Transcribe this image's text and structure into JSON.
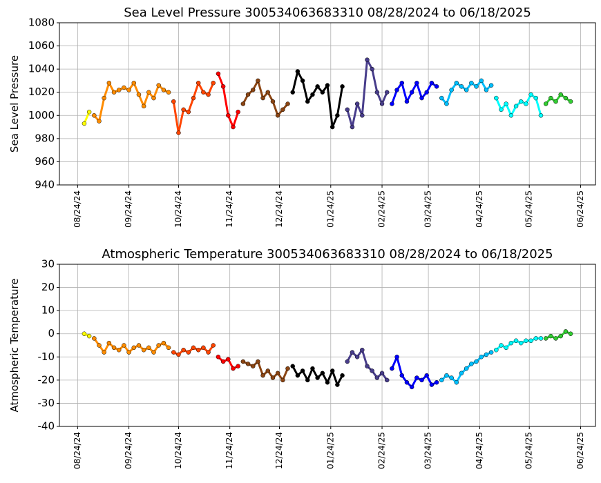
{
  "chart_data": [
    {
      "type": "scatter",
      "title": "Sea Level Pressure 300534063683310  08/28/2024 to 06/18/2025",
      "y_label": "Sea Level Pressure",
      "xlim": [
        "2024-08-13",
        "2025-07-03"
      ],
      "ylim": [
        940,
        1080
      ],
      "yticks": [
        940,
        960,
        980,
        1000,
        1020,
        1040,
        1060,
        1080
      ],
      "grid": true,
      "xticks": [
        {
          "value": "2024-08-24",
          "label": "08/24/24"
        },
        {
          "value": "2024-09-24",
          "label": "09/24/24"
        },
        {
          "value": "2024-10-24",
          "label": "10/24/24"
        },
        {
          "value": "2024-11-24",
          "label": "11/24/24"
        },
        {
          "value": "2024-12-24",
          "label": "12/24/24"
        },
        {
          "value": "2025-01-24",
          "label": "01/24/25"
        },
        {
          "value": "2025-02-24",
          "label": "02/24/25"
        },
        {
          "value": "2025-03-24",
          "label": "03/24/25"
        },
        {
          "value": "2025-04-24",
          "label": "04/24/25"
        },
        {
          "value": "2025-05-24",
          "label": "05/24/25"
        },
        {
          "value": "2025-06-24",
          "label": "06/24/25"
        }
      ],
      "series": [
        {
          "color": "#ffff00",
          "x": [
            "2024-08-28",
            "2024-08-31"
          ],
          "values": [
            993,
            1003
          ]
        },
        {
          "color": "#ff8c00",
          "x": [
            "2024-09-03",
            "2024-09-06",
            "2024-09-09",
            "2024-09-12",
            "2024-09-15",
            "2024-09-18",
            "2024-09-21",
            "2024-09-24",
            "2024-09-27",
            "2024-09-30",
            "2024-10-03",
            "2024-10-06",
            "2024-10-09",
            "2024-10-12",
            "2024-10-15",
            "2024-10-18"
          ],
          "values": [
            1000,
            995,
            1015,
            1028,
            1020,
            1022,
            1024,
            1022,
            1028,
            1018,
            1008,
            1020,
            1015,
            1026,
            1022,
            1020
          ]
        },
        {
          "color": "#ff4500",
          "x": [
            "2024-10-21",
            "2024-10-24",
            "2024-10-27",
            "2024-10-30",
            "2024-11-02",
            "2024-11-05",
            "2024-11-08",
            "2024-11-11",
            "2024-11-14"
          ],
          "values": [
            1012,
            985,
            1005,
            1003,
            1015,
            1028,
            1020,
            1018,
            1028
          ]
        },
        {
          "color": "#ff0000",
          "x": [
            "2024-11-17",
            "2024-11-20",
            "2024-11-23",
            "2024-11-26",
            "2024-11-29"
          ],
          "values": [
            1036,
            1025,
            1000,
            990,
            1003
          ]
        },
        {
          "color": "#8b4513",
          "x": [
            "2024-12-02",
            "2024-12-05",
            "2024-12-08",
            "2024-12-11",
            "2024-12-14",
            "2024-12-17",
            "2024-12-20",
            "2024-12-23",
            "2024-12-26",
            "2024-12-29"
          ],
          "values": [
            1010,
            1018,
            1022,
            1030,
            1015,
            1020,
            1012,
            1000,
            1005,
            1010
          ]
        },
        {
          "color": "#000000",
          "x": [
            "2025-01-01",
            "2025-01-04",
            "2025-01-07",
            "2025-01-10",
            "2025-01-13",
            "2025-01-16",
            "2025-01-19",
            "2025-01-22",
            "2025-01-25",
            "2025-01-28",
            "2025-01-31"
          ],
          "values": [
            1020,
            1038,
            1030,
            1012,
            1018,
            1025,
            1020,
            1026,
            990,
            1000,
            1025
          ]
        },
        {
          "color": "#483d8b",
          "x": [
            "2025-02-03",
            "2025-02-06",
            "2025-02-09",
            "2025-02-12",
            "2025-02-15",
            "2025-02-18",
            "2025-02-21",
            "2025-02-24",
            "2025-02-27"
          ],
          "values": [
            1005,
            990,
            1010,
            1000,
            1048,
            1040,
            1020,
            1010,
            1020
          ]
        },
        {
          "color": "#0000ff",
          "x": [
            "2025-03-02",
            "2025-03-05",
            "2025-03-08",
            "2025-03-11",
            "2025-03-14",
            "2025-03-17",
            "2025-03-20",
            "2025-03-23",
            "2025-03-26",
            "2025-03-29"
          ],
          "values": [
            1010,
            1022,
            1028,
            1012,
            1020,
            1028,
            1015,
            1020,
            1028,
            1025
          ]
        },
        {
          "color": "#00bfff",
          "x": [
            "2025-04-01",
            "2025-04-04",
            "2025-04-07",
            "2025-04-10",
            "2025-04-13",
            "2025-04-16",
            "2025-04-19",
            "2025-04-22",
            "2025-04-25",
            "2025-04-28",
            "2025-05-01"
          ],
          "values": [
            1015,
            1010,
            1022,
            1028,
            1025,
            1022,
            1028,
            1025,
            1030,
            1022,
            1026
          ]
        },
        {
          "color": "#00ffff",
          "x": [
            "2025-05-04",
            "2025-05-07",
            "2025-05-10",
            "2025-05-13",
            "2025-05-16",
            "2025-05-19",
            "2025-05-22",
            "2025-05-25",
            "2025-05-28",
            "2025-05-31"
          ],
          "values": [
            1015,
            1005,
            1010,
            1000,
            1008,
            1012,
            1010,
            1018,
            1015,
            1000
          ]
        },
        {
          "color": "#32cd32",
          "x": [
            "2025-06-03",
            "2025-06-06",
            "2025-06-09",
            "2025-06-12",
            "2025-06-15",
            "2025-06-18"
          ],
          "values": [
            1010,
            1015,
            1012,
            1018,
            1015,
            1012
          ]
        }
      ]
    },
    {
      "type": "scatter",
      "title": "Atmospheric Temperature 300534063683310  08/28/2024 to 06/18/2025",
      "y_label": "Atmospheric Temperature",
      "xlim": [
        "2024-08-13",
        "2025-07-03"
      ],
      "ylim": [
        -40,
        30
      ],
      "yticks": [
        -40,
        -30,
        -20,
        -10,
        0,
        10,
        20,
        30
      ],
      "grid": true,
      "xticks": [
        {
          "value": "2024-08-24",
          "label": "08/24/24"
        },
        {
          "value": "2024-09-24",
          "label": "09/24/24"
        },
        {
          "value": "2024-10-24",
          "label": "10/24/24"
        },
        {
          "value": "2024-11-24",
          "label": "11/24/24"
        },
        {
          "value": "2024-12-24",
          "label": "12/24/24"
        },
        {
          "value": "2025-01-24",
          "label": "01/24/25"
        },
        {
          "value": "2025-02-24",
          "label": "02/24/25"
        },
        {
          "value": "2025-03-24",
          "label": "03/24/25"
        },
        {
          "value": "2025-04-24",
          "label": "04/24/25"
        },
        {
          "value": "2025-05-24",
          "label": "05/24/25"
        },
        {
          "value": "2025-06-24",
          "label": "06/24/25"
        }
      ],
      "series": [
        {
          "color": "#ffff00",
          "x": [
            "2024-08-28",
            "2024-08-31"
          ],
          "values": [
            0,
            -1
          ]
        },
        {
          "color": "#ff8c00",
          "x": [
            "2024-09-03",
            "2024-09-06",
            "2024-09-09",
            "2024-09-12",
            "2024-09-15",
            "2024-09-18",
            "2024-09-21",
            "2024-09-24",
            "2024-09-27",
            "2024-09-30",
            "2024-10-03",
            "2024-10-06",
            "2024-10-09",
            "2024-10-12",
            "2024-10-15",
            "2024-10-18"
          ],
          "values": [
            -2,
            -5,
            -8,
            -4,
            -6,
            -7,
            -5,
            -8,
            -6,
            -5,
            -7,
            -6,
            -8,
            -5,
            -4,
            -6
          ]
        },
        {
          "color": "#ff4500",
          "x": [
            "2024-10-21",
            "2024-10-24",
            "2024-10-27",
            "2024-10-30",
            "2024-11-02",
            "2024-11-05",
            "2024-11-08",
            "2024-11-11",
            "2024-11-14"
          ],
          "values": [
            -8,
            -9,
            -7,
            -8,
            -6,
            -7,
            -6,
            -8,
            -5
          ]
        },
        {
          "color": "#ff0000",
          "x": [
            "2024-11-17",
            "2024-11-20",
            "2024-11-23",
            "2024-11-26",
            "2024-11-29"
          ],
          "values": [
            -10,
            -12,
            -11,
            -15,
            -14
          ]
        },
        {
          "color": "#8b4513",
          "x": [
            "2024-12-02",
            "2024-12-05",
            "2024-12-08",
            "2024-12-11",
            "2024-12-14",
            "2024-12-17",
            "2024-12-20",
            "2024-12-23",
            "2024-12-26",
            "2024-12-29"
          ],
          "values": [
            -12,
            -13,
            -14,
            -12,
            -18,
            -16,
            -19,
            -17,
            -20,
            -15
          ]
        },
        {
          "color": "#000000",
          "x": [
            "2025-01-01",
            "2025-01-04",
            "2025-01-07",
            "2025-01-10",
            "2025-01-13",
            "2025-01-16",
            "2025-01-19",
            "2025-01-22",
            "2025-01-25",
            "2025-01-28",
            "2025-01-31"
          ],
          "values": [
            -14,
            -18,
            -16,
            -20,
            -15,
            -19,
            -17,
            -21,
            -16,
            -22,
            -18
          ]
        },
        {
          "color": "#483d8b",
          "x": [
            "2025-02-03",
            "2025-02-06",
            "2025-02-09",
            "2025-02-12",
            "2025-02-15",
            "2025-02-18",
            "2025-02-21",
            "2025-02-24",
            "2025-02-27"
          ],
          "values": [
            -12,
            -8,
            -10,
            -7,
            -14,
            -16,
            -19,
            -17,
            -20
          ]
        },
        {
          "color": "#0000ff",
          "x": [
            "2025-03-02",
            "2025-03-05",
            "2025-03-08",
            "2025-03-11",
            "2025-03-14",
            "2025-03-17",
            "2025-03-20",
            "2025-03-23",
            "2025-03-26",
            "2025-03-29"
          ],
          "values": [
            -15,
            -10,
            -18,
            -21,
            -23,
            -19,
            -20,
            -18,
            -22,
            -21
          ]
        },
        {
          "color": "#00bfff",
          "x": [
            "2025-04-01",
            "2025-04-04",
            "2025-04-07",
            "2025-04-10",
            "2025-04-13",
            "2025-04-16",
            "2025-04-19",
            "2025-04-22",
            "2025-04-25",
            "2025-04-28",
            "2025-05-01"
          ],
          "values": [
            -20,
            -18,
            -19,
            -21,
            -17,
            -15,
            -13,
            -12,
            -10,
            -9,
            -8
          ]
        },
        {
          "color": "#00ffff",
          "x": [
            "2025-05-04",
            "2025-05-07",
            "2025-05-10",
            "2025-05-13",
            "2025-05-16",
            "2025-05-19",
            "2025-05-22",
            "2025-05-25",
            "2025-05-28",
            "2025-05-31"
          ],
          "values": [
            -7,
            -5,
            -6,
            -4,
            -3,
            -4,
            -3,
            -3,
            -2,
            -2
          ]
        },
        {
          "color": "#32cd32",
          "x": [
            "2025-06-03",
            "2025-06-06",
            "2025-06-09",
            "2025-06-12",
            "2025-06-15",
            "2025-06-18"
          ],
          "values": [
            -2,
            -1,
            -2,
            -1,
            1,
            0
          ]
        }
      ]
    }
  ]
}
